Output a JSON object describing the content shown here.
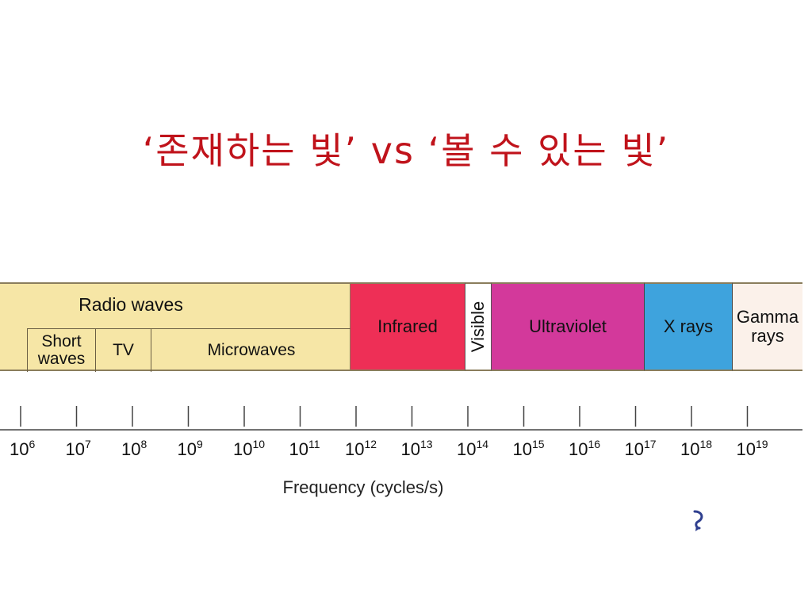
{
  "title": "‘존재하는 빛’ vs ‘볼 수 있는 빛’",
  "spectrum": {
    "radio": {
      "label": "Radio waves",
      "subs": {
        "short_line1": "Short",
        "short_line2": "waves",
        "tv": "TV",
        "microwaves": "Microwaves"
      }
    },
    "infrared": "Infrared",
    "visible": "Visible",
    "ultraviolet": "Ultraviolet",
    "xrays": "X rays",
    "gamma_line1": "Gamma",
    "gamma_line2": "rays",
    "colors": {
      "radio": "#f6e6a6",
      "infrared": "#ee2f56",
      "visible": "#ffffff",
      "ultraviolet": "#d3399b",
      "xrays": "#3ea3dd",
      "gamma": "#fbf1ea"
    }
  },
  "axis": {
    "base": "10",
    "exponents": [
      "6",
      "7",
      "8",
      "9",
      "10",
      "11",
      "12",
      "13",
      "14",
      "15",
      "16",
      "17",
      "18",
      "19"
    ],
    "label": "Frequency (cycles/s)"
  },
  "nav": {
    "icon": "return-arrow-icon"
  }
}
